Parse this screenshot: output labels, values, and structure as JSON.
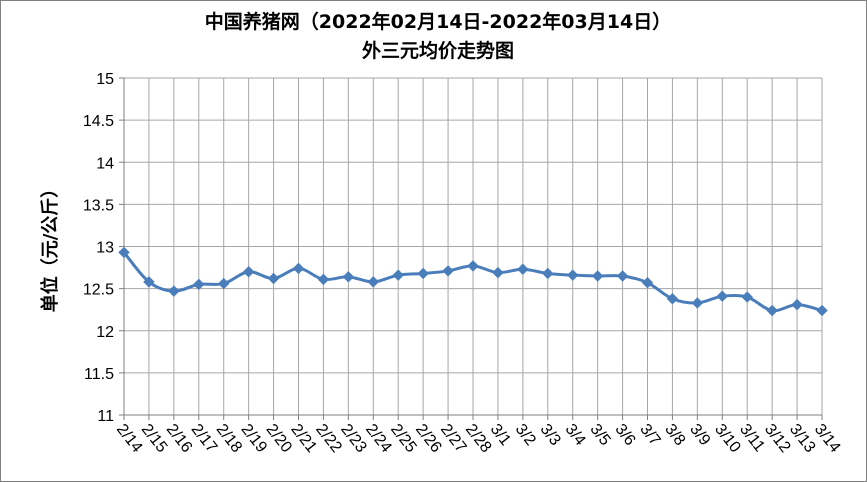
{
  "chart_data": {
    "type": "line",
    "title": "中国养猪网（2022年02月14日-2022年03月14日）",
    "subtitle": "外三元均价走势图",
    "xlabel": "",
    "ylabel": "单位（元/公斤）",
    "ylim": [
      11,
      15
    ],
    "ytick_step": 0.5,
    "grid": true,
    "legend": "none",
    "categories": [
      "2/14",
      "2/15",
      "2/16",
      "2/17",
      "2/18",
      "2/19",
      "2/20",
      "2/21",
      "2/22",
      "2/23",
      "2/24",
      "2/25",
      "2/26",
      "2/27",
      "2/28",
      "3/1",
      "3/2",
      "3/3",
      "3/4",
      "3/5",
      "3/6",
      "3/7",
      "3/8",
      "3/9",
      "3/10",
      "3/11",
      "3/12",
      "3/13",
      "3/14"
    ],
    "series": [
      {
        "name": "",
        "color": "#4a7ebb",
        "values": [
          12.93,
          12.58,
          12.47,
          12.55,
          12.56,
          12.7,
          12.62,
          12.74,
          12.61,
          12.64,
          12.58,
          12.66,
          12.68,
          12.71,
          12.77,
          12.69,
          12.73,
          12.68,
          12.66,
          12.65,
          12.65,
          12.57,
          12.38,
          12.33,
          12.41,
          12.4,
          12.24,
          12.31,
          12.24
        ]
      }
    ]
  }
}
